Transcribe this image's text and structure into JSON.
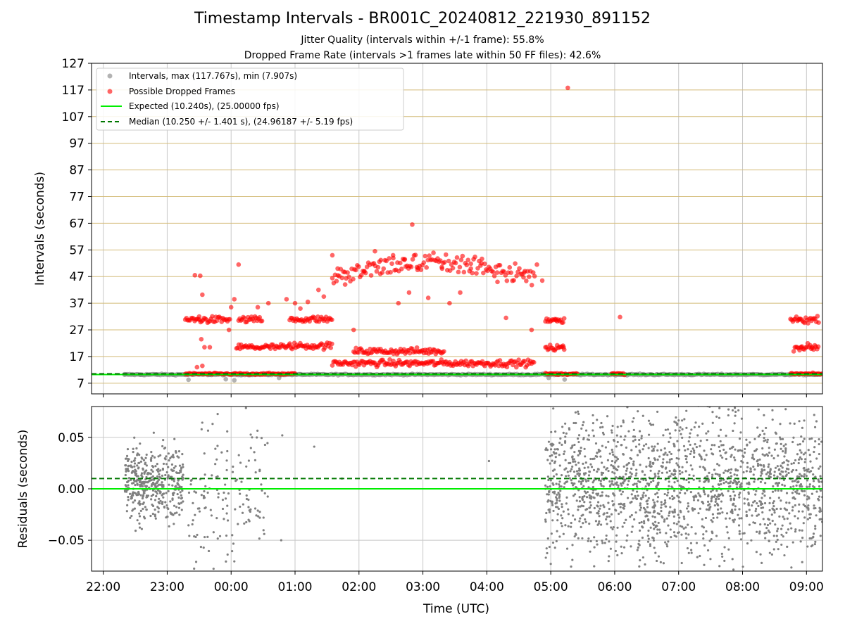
{
  "chart_data": [
    {
      "type": "scatter",
      "title": "Timestamp Intervals - BR001C_20240812_221930_891152",
      "subtitle_1": "Jitter Quality (intervals within +/-1 frame): 55.8%",
      "subtitle_2": "Dropped Frame Rate (intervals >1 frames late within 50 FF files): 42.6%",
      "ylabel": "Intervals (seconds)",
      "ylim": [
        3,
        127
      ],
      "y_ticks": [
        7,
        17,
        27,
        37,
        47,
        57,
        67,
        77,
        87,
        97,
        107,
        117,
        127
      ],
      "x_range": [
        "21:49",
        "09:15"
      ],
      "grid": true,
      "legend_position": "upper-left",
      "legend": [
        {
          "label": "Intervals, max (117.767s), min (7.907s)",
          "marker": "circle",
          "color": "#808080"
        },
        {
          "label": "Possible Dropped Frames",
          "marker": "circle",
          "color": "#ff0000"
        },
        {
          "label": "Expected (10.240s), (25.00000 fps)",
          "marker": "solid-line",
          "color": "#00ee00"
        },
        {
          "label": "Median (10.250 +/- 1.401 s), (24.96187 +/- 5.19 fps)",
          "marker": "dashed-line",
          "color": "#007700"
        }
      ],
      "expected_interval": 10.24,
      "median_interval": 10.25,
      "min_interval": 7.907,
      "max_interval": 117.767,
      "series": [
        {
          "name": "Intervals, max (117.767s), min (7.907s)",
          "color": "#808080",
          "points_time_y": [
            [
              "22:20",
              10.2
            ],
            [
              "22:35",
              10.2
            ],
            [
              "22:50",
              10.3
            ],
            [
              "23:05",
              10.2
            ],
            [
              "23:20",
              8.3
            ],
            [
              "23:40",
              10.2
            ],
            [
              "23:55",
              8.5
            ],
            [
              "00:03",
              8.1
            ],
            [
              "00:20",
              10.2
            ],
            [
              "00:35",
              10.2
            ],
            [
              "00:45",
              9.0
            ],
            [
              "01:05",
              10.3
            ],
            [
              "01:20",
              10.2
            ],
            [
              "04:58",
              9.0
            ],
            [
              "05:13",
              8.4
            ],
            [
              "05:40",
              10.2
            ],
            [
              "06:10",
              10.2
            ],
            [
              "06:40",
              10.3
            ],
            [
              "07:10",
              10.2
            ],
            [
              "07:40",
              10.2
            ],
            [
              "08:10",
              10.3
            ],
            [
              "08:40",
              10.2
            ],
            [
              "09:10",
              10.2
            ]
          ]
        },
        {
          "name": "Possible Dropped Frames",
          "color": "#ff0000",
          "points_time_y": [
            [
              "23:26",
              47.5
            ],
            [
              "23:31",
              47.3
            ],
            [
              "23:33",
              40.2
            ],
            [
              "23:30",
              32.0
            ],
            [
              "23:32",
              23.5
            ],
            [
              "23:35",
              20.5
            ],
            [
              "23:40",
              20.5
            ],
            [
              "23:28",
              13.0
            ],
            [
              "23:33",
              13.5
            ],
            [
              "00:03",
              38.5
            ],
            [
              "00:07",
              51.5
            ],
            [
              "00:00",
              35.5
            ],
            [
              "23:58",
              27.0
            ],
            [
              "00:25",
              35.5
            ],
            [
              "00:35",
              37.0
            ],
            [
              "00:52",
              38.5
            ],
            [
              "01:00",
              37.0
            ],
            [
              "01:05",
              35.0
            ],
            [
              "01:12",
              37.5
            ],
            [
              "01:22",
              42.0
            ],
            [
              "01:27",
              39.5
            ],
            [
              "01:35",
              55.0
            ],
            [
              "01:40",
              50.0
            ],
            [
              "01:47",
              44.0
            ],
            [
              "01:55",
              27.0
            ],
            [
              "02:05",
              49.0
            ],
            [
              "02:15",
              56.5
            ],
            [
              "02:20",
              48.0
            ],
            [
              "02:32",
              55.0
            ],
            [
              "02:37",
              37.0
            ],
            [
              "02:43",
              53.5
            ],
            [
              "02:50",
              66.5
            ],
            [
              "02:47",
              41.0
            ],
            [
              "02:55",
              49.5
            ],
            [
              "03:05",
              39.0
            ],
            [
              "03:18",
              50.0
            ],
            [
              "03:25",
              37.0
            ],
            [
              "03:35",
              41.0
            ],
            [
              "03:45",
              50.0
            ],
            [
              "03:55",
              52.0
            ],
            [
              "04:10",
              45.0
            ],
            [
              "04:18",
              31.5
            ],
            [
              "04:35",
              48.5
            ],
            [
              "04:42",
              27.0
            ],
            [
              "04:47",
              51.5
            ],
            [
              "04:52",
              45.5
            ],
            [
              "05:05",
              31.0
            ],
            [
              "05:12",
              20.5
            ],
            [
              "05:16",
              117.8
            ],
            [
              "06:05",
              31.8
            ],
            [
              "08:53",
              31.0
            ],
            [
              "08:55",
              20.5
            ],
            [
              "09:05",
              20.5
            ]
          ],
          "clusters": [
            {
              "from": "23:17",
              "to": "23:59",
              "y": 30.8
            },
            {
              "from": "23:17",
              "to": "00:05",
              "y": 10.5
            },
            {
              "from": "00:07",
              "to": "00:30",
              "y": 30.8
            },
            {
              "from": "00:05",
              "to": "00:55",
              "y": 20.5
            },
            {
              "from": "00:05",
              "to": "01:00",
              "y": 10.5
            },
            {
              "from": "00:55",
              "to": "01:35",
              "y": 21.0
            },
            {
              "from": "00:55",
              "to": "01:35",
              "y": 31.0
            },
            {
              "from": "01:35",
              "to": "04:45",
              "y": 14.5
            },
            {
              "from": "01:55",
              "to": "03:20",
              "y": 19.0
            },
            {
              "from": "01:35",
              "to": "04:45",
              "y": 48.0
            },
            {
              "from": "04:55",
              "to": "05:13",
              "y": 30.8
            },
            {
              "from": "04:55",
              "to": "05:13",
              "y": 20.5
            },
            {
              "from": "04:55",
              "to": "05:25",
              "y": 10.5
            },
            {
              "from": "05:57",
              "to": "06:10",
              "y": 10.5
            },
            {
              "from": "08:45",
              "to": "09:15",
              "y": 10.5
            },
            {
              "from": "08:45",
              "to": "09:12",
              "y": 30.8
            },
            {
              "from": "08:48",
              "to": "09:12",
              "y": 20.5
            }
          ]
        }
      ]
    },
    {
      "type": "scatter",
      "xlabel": "Time (UTC)",
      "ylabel": "Residuals (seconds)",
      "ylim": [
        -0.08,
        0.08
      ],
      "y_ticks": [
        -0.05,
        0.0,
        0.05
      ],
      "y_tick_labels": [
        "−0.05",
        "0.00",
        "0.05"
      ],
      "x_ticks": [
        "22:00",
        "23:00",
        "00:00",
        "01:00",
        "02:00",
        "03:00",
        "04:00",
        "05:00",
        "06:00",
        "07:00",
        "08:00",
        "09:00"
      ],
      "x_range": [
        "21:49",
        "09:15"
      ],
      "grid": true,
      "expected_residual": 0.0,
      "median_residual": 0.01,
      "series": [
        {
          "color": "#808080",
          "dense_regions": [
            {
              "from": "22:20",
              "to": "23:15",
              "center": 0.005,
              "spread": 0.035
            },
            {
              "from": "04:55",
              "to": "09:15",
              "center": 0.005,
              "spread": 0.07
            }
          ],
          "sparse_regions": [
            {
              "from": "23:20",
              "to": "00:35",
              "center": 0.0,
              "spread": 0.07
            }
          ],
          "points_time_y": [
            [
              "00:48",
              0.052
            ],
            [
              "01:18",
              0.041
            ],
            [
              "00:47",
              -0.05
            ],
            [
              "04:02",
              0.027
            ],
            [
              "01:44",
              0.01
            ],
            [
              "04:55",
              -0.03
            ],
            [
              "05:00",
              -0.073
            ]
          ]
        }
      ]
    }
  ]
}
